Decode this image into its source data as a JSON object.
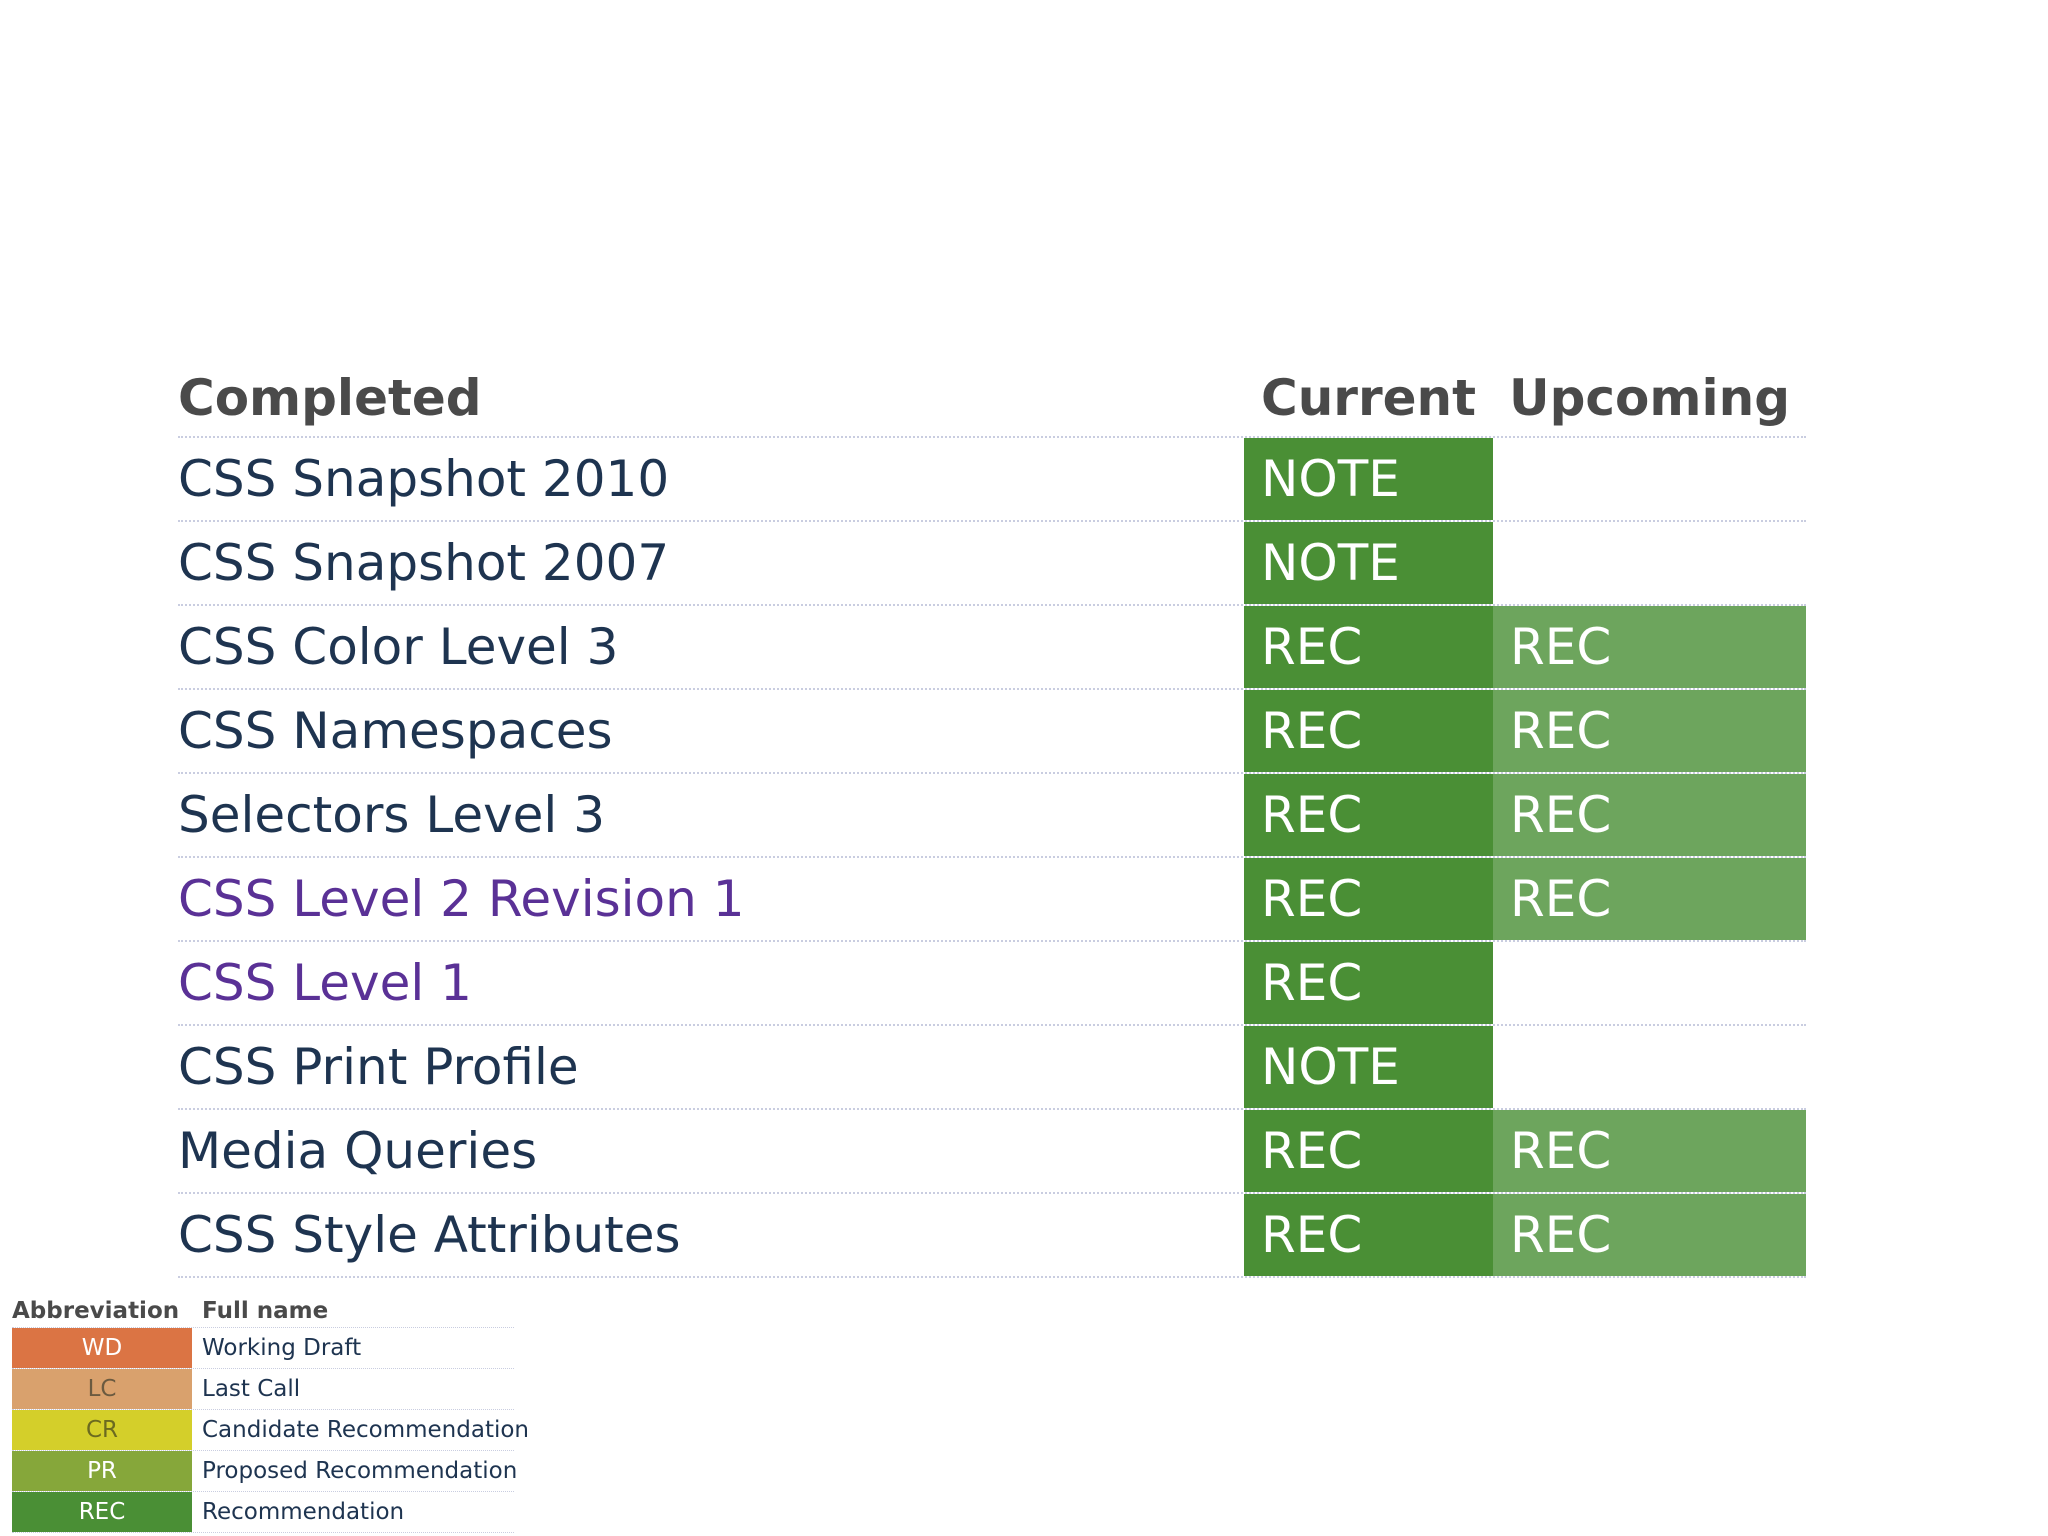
{
  "table": {
    "headers": {
      "completed": "Completed",
      "current": "Current",
      "upcoming": "Upcoming"
    },
    "rows": [
      {
        "name": "CSS Snapshot 2010",
        "visited": false,
        "current": "NOTE",
        "upcoming": ""
      },
      {
        "name": "CSS Snapshot 2007",
        "visited": false,
        "current": "NOTE",
        "upcoming": ""
      },
      {
        "name": "CSS Color Level 3",
        "visited": false,
        "current": "REC",
        "upcoming": "REC"
      },
      {
        "name": "CSS Namespaces",
        "visited": false,
        "current": "REC",
        "upcoming": "REC"
      },
      {
        "name": "Selectors Level 3",
        "visited": false,
        "current": "REC",
        "upcoming": "REC"
      },
      {
        "name": "CSS Level 2 Revision 1",
        "visited": true,
        "current": "REC",
        "upcoming": "REC"
      },
      {
        "name": "CSS Level 1",
        "visited": true,
        "current": "REC",
        "upcoming": ""
      },
      {
        "name": "CSS Print Profile",
        "visited": false,
        "current": "NOTE",
        "upcoming": ""
      },
      {
        "name": "Media Queries",
        "visited": false,
        "current": "REC",
        "upcoming": "REC"
      },
      {
        "name": "CSS Style Attributes",
        "visited": false,
        "current": "REC",
        "upcoming": "REC"
      }
    ]
  },
  "legend": {
    "headers": {
      "abbreviation": "Abbreviation",
      "full_name": "Full name"
    },
    "items": [
      {
        "abbr": "WD",
        "full": "Working Draft",
        "bg": "#db7444",
        "fg": "#ffffff"
      },
      {
        "abbr": "LC",
        "full": "Last Call",
        "bg": "#d9a16d",
        "fg": "#6b5a40"
      },
      {
        "abbr": "CR",
        "full": "Candidate Recommendation",
        "bg": "#d4cf2a",
        "fg": "#6b6a20"
      },
      {
        "abbr": "PR",
        "full": "Proposed Recommendation",
        "bg": "#86a73a",
        "fg": "#ffffff"
      },
      {
        "abbr": "REC",
        "full": "Recommendation",
        "bg": "#4a8f35",
        "fg": "#ffffff"
      }
    ]
  },
  "colors": {
    "current_cell": "#4a8f35",
    "upcoming_cell": "#6da55d",
    "spec_link": "#1e3450",
    "spec_link_visited": "#5a3196",
    "header_text": "#4a4a4a"
  }
}
